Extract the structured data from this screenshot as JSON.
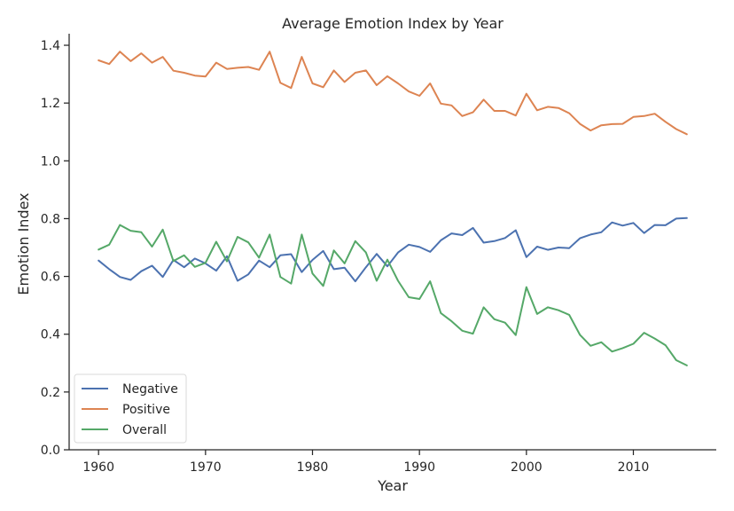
{
  "chart_data": {
    "type": "line",
    "title": "Average Emotion Index by Year",
    "xlabel": "Year",
    "ylabel": "Emotion Index",
    "xlim": [
      1957.25,
      2017.75
    ],
    "ylim": [
      0.0,
      1.44
    ],
    "xticks": [
      1960,
      1970,
      1980,
      1990,
      2000,
      2010
    ],
    "yticks": [
      0.0,
      0.2,
      0.4,
      0.6,
      0.8,
      1.0,
      1.2,
      1.4
    ],
    "ytick_labels": [
      "0.0",
      "0.2",
      "0.4",
      "0.6",
      "0.8",
      "1.0",
      "1.2",
      "1.4"
    ],
    "grid": false,
    "legend_position": "lower-left",
    "x": [
      1960,
      1961,
      1962,
      1963,
      1964,
      1965,
      1966,
      1967,
      1968,
      1969,
      1970,
      1971,
      1972,
      1973,
      1974,
      1975,
      1976,
      1977,
      1978,
      1979,
      1980,
      1981,
      1982,
      1983,
      1984,
      1985,
      1986,
      1987,
      1988,
      1989,
      1990,
      1991,
      1992,
      1993,
      1994,
      1995,
      1996,
      1997,
      1998,
      1999,
      2000,
      2001,
      2002,
      2003,
      2004,
      2005,
      2006,
      2007,
      2008,
      2009,
      2010,
      2011,
      2012,
      2013,
      2014,
      2015
    ],
    "series": [
      {
        "name": "Negative",
        "color": "#4c72b0",
        "values": [
          0.655,
          0.625,
          0.598,
          0.588,
          0.618,
          0.637,
          0.598,
          0.657,
          0.632,
          0.662,
          0.645,
          0.62,
          0.67,
          0.585,
          0.607,
          0.655,
          0.632,
          0.673,
          0.677,
          0.615,
          0.657,
          0.688,
          0.625,
          0.63,
          0.583,
          0.632,
          0.678,
          0.635,
          0.683,
          0.71,
          0.702,
          0.685,
          0.725,
          0.749,
          0.743,
          0.768,
          0.717,
          0.722,
          0.733,
          0.76,
          0.667,
          0.703,
          0.692,
          0.7,
          0.698,
          0.732,
          0.745,
          0.753,
          0.787,
          0.776,
          0.785,
          0.75,
          0.778,
          0.777,
          0.8,
          0.802
        ]
      },
      {
        "name": "Positive",
        "color": "#dd8452",
        "values": [
          1.348,
          1.335,
          1.378,
          1.345,
          1.372,
          1.34,
          1.36,
          1.312,
          1.305,
          1.295,
          1.292,
          1.34,
          1.318,
          1.322,
          1.325,
          1.315,
          1.378,
          1.27,
          1.252,
          1.36,
          1.268,
          1.255,
          1.313,
          1.273,
          1.305,
          1.313,
          1.262,
          1.293,
          1.268,
          1.24,
          1.225,
          1.268,
          1.198,
          1.192,
          1.155,
          1.168,
          1.212,
          1.173,
          1.173,
          1.157,
          1.232,
          1.175,
          1.187,
          1.183,
          1.165,
          1.128,
          1.105,
          1.123,
          1.127,
          1.128,
          1.152,
          1.155,
          1.163,
          1.135,
          1.11,
          1.092
        ]
      },
      {
        "name": "Overall",
        "color": "#55a868",
        "values": [
          0.693,
          0.71,
          0.778,
          0.758,
          0.753,
          0.703,
          0.762,
          0.653,
          0.673,
          0.633,
          0.647,
          0.72,
          0.652,
          0.737,
          0.718,
          0.665,
          0.745,
          0.598,
          0.575,
          0.745,
          0.61,
          0.567,
          0.69,
          0.645,
          0.722,
          0.683,
          0.585,
          0.658,
          0.585,
          0.528,
          0.522,
          0.583,
          0.473,
          0.445,
          0.412,
          0.402,
          0.493,
          0.452,
          0.44,
          0.397,
          0.563,
          0.47,
          0.493,
          0.483,
          0.467,
          0.398,
          0.36,
          0.372,
          0.34,
          0.352,
          0.367,
          0.405,
          0.385,
          0.362,
          0.31,
          0.292
        ]
      }
    ]
  }
}
